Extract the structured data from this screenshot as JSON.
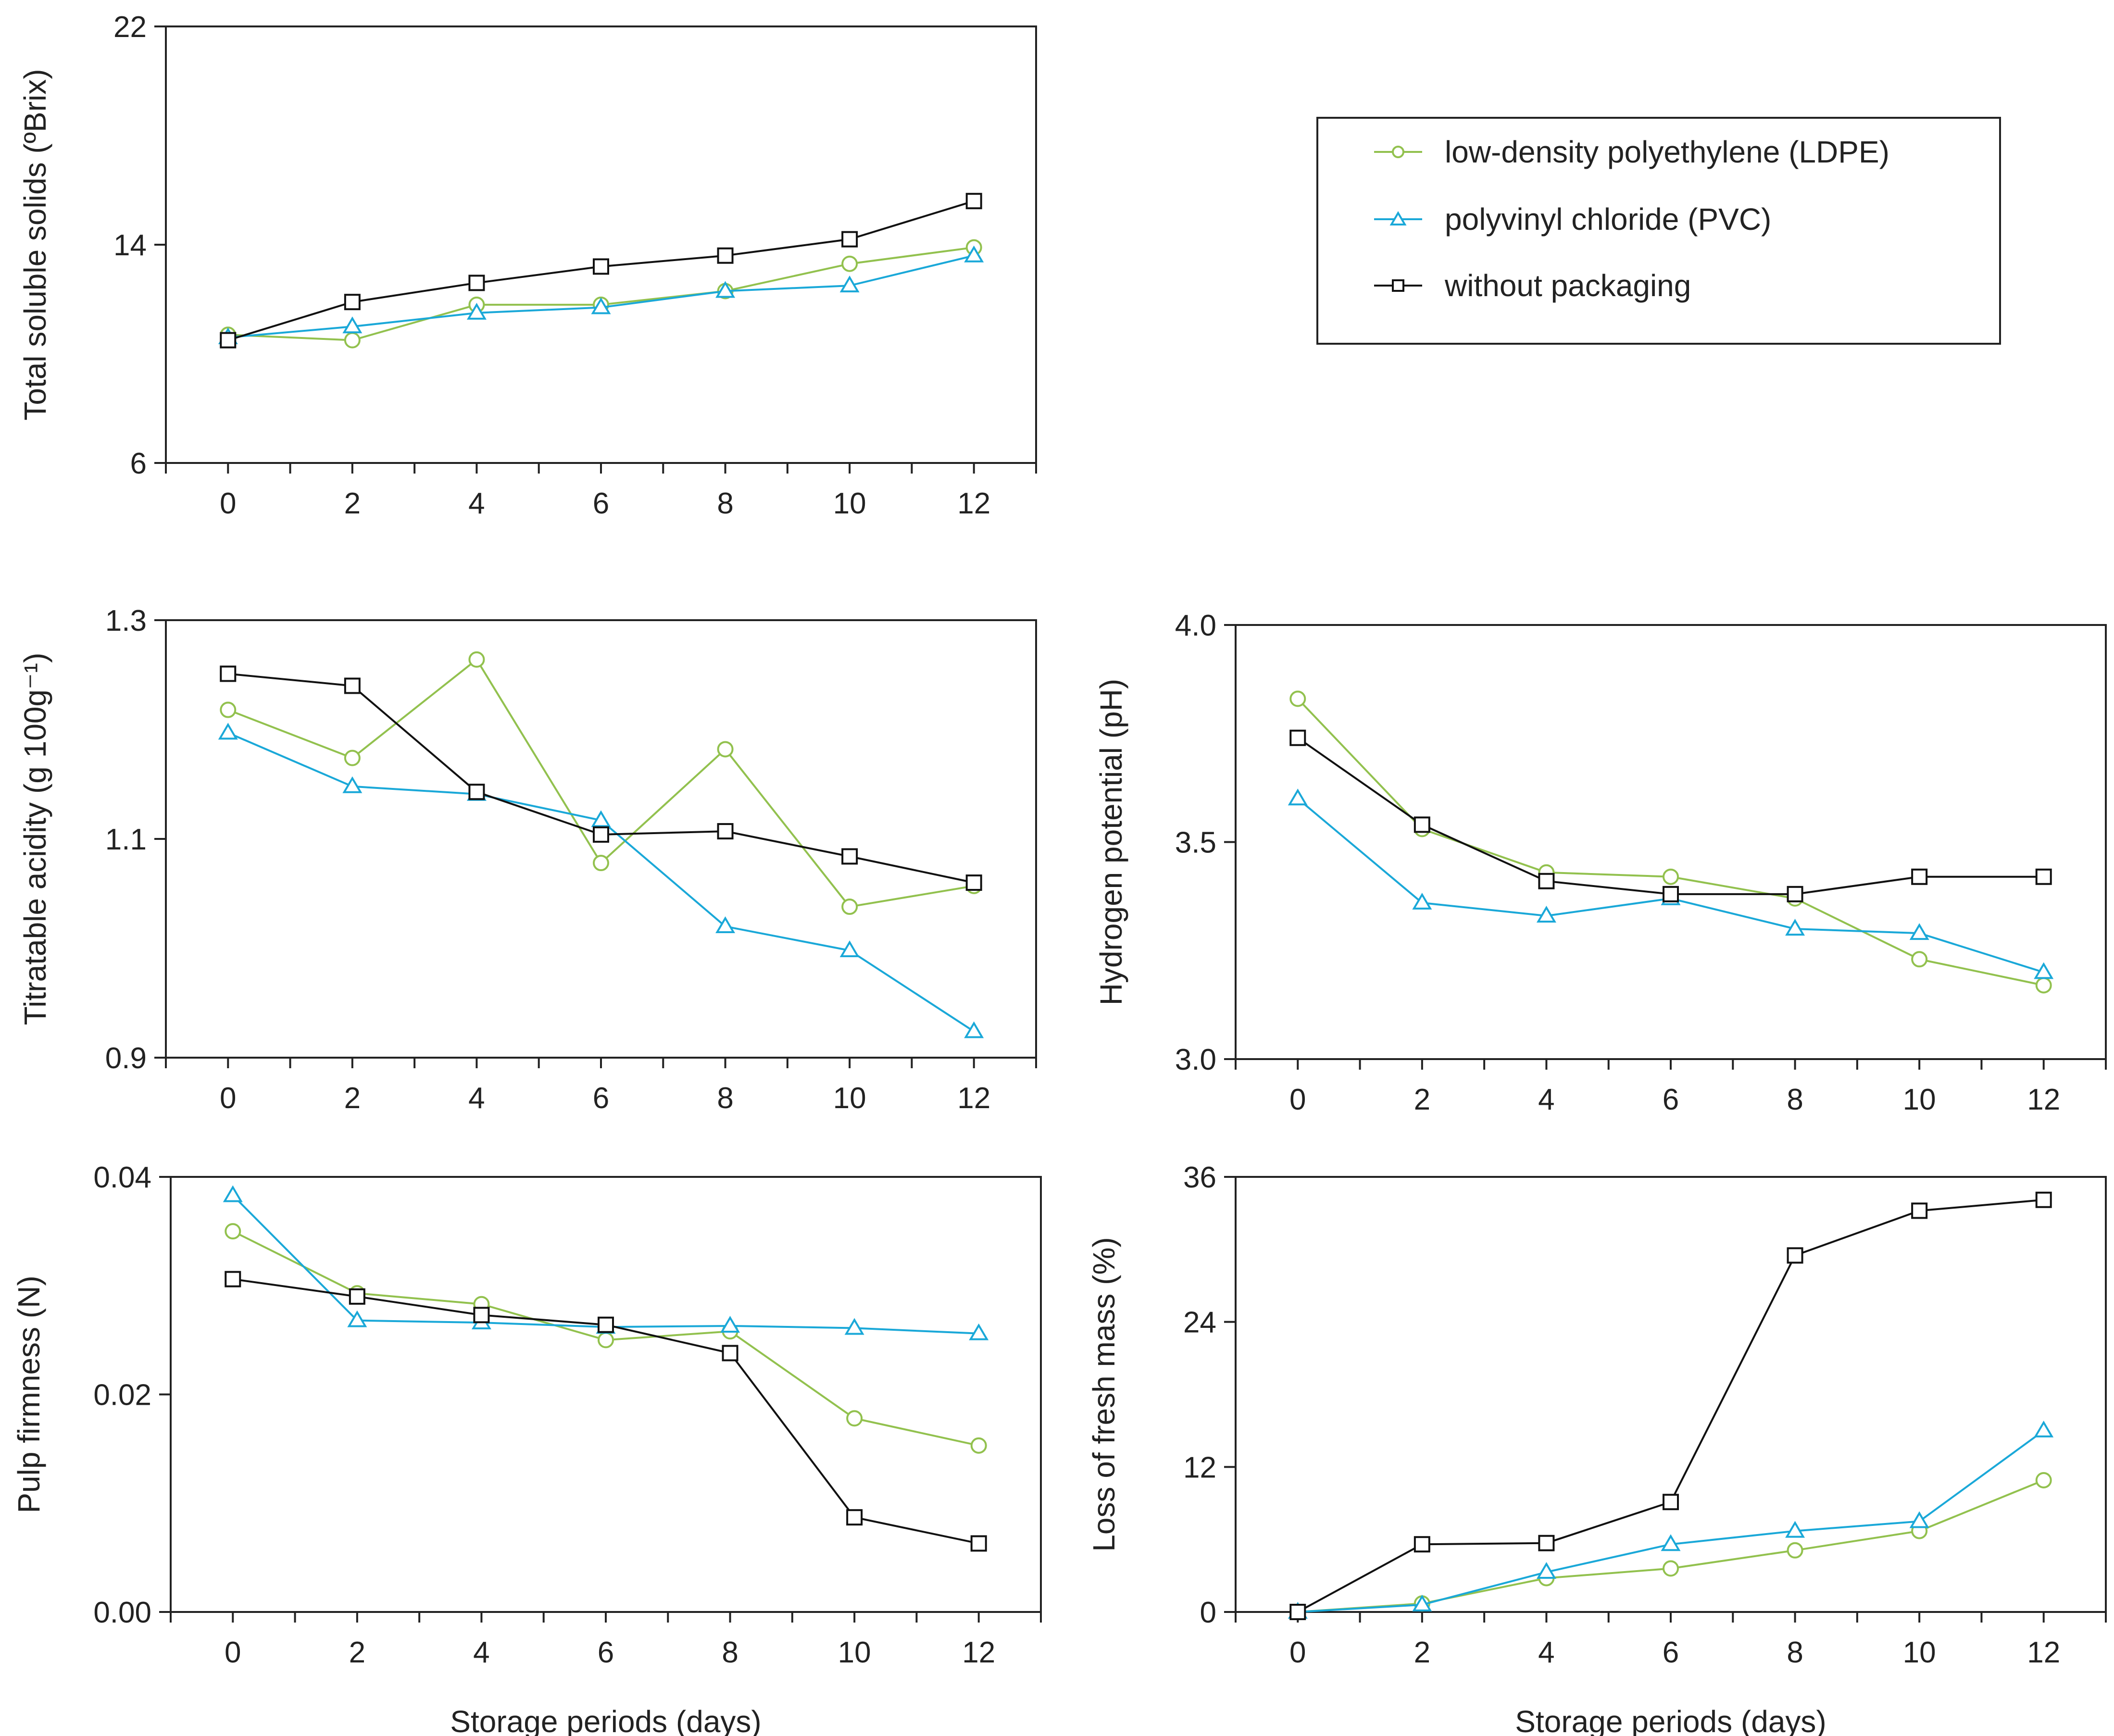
{
  "colors": {
    "ldpe": "#92c14e",
    "pvc": "#1aa8d8",
    "none": "#111111",
    "axis": "#222222"
  },
  "legend": {
    "items": [
      {
        "key": "ldpe",
        "label": "low-density polyethylene (LDPE)",
        "marker": "circle"
      },
      {
        "key": "pvc",
        "label": "polyvinyl chloride (PVC)",
        "marker": "triangle"
      },
      {
        "key": "none",
        "label": "without packaging",
        "marker": "square"
      }
    ]
  },
  "chart_data": [
    {
      "id": "tss",
      "type": "line",
      "ylabel": "Total soluble solids (ºBrix)",
      "xlabel": "",
      "x": [
        0,
        2,
        4,
        6,
        8,
        10,
        12
      ],
      "xlim": [
        -1,
        13
      ],
      "ylim": [
        6,
        22
      ],
      "yticks": [
        "6",
        "14",
        "22"
      ],
      "yticks_values": [
        6,
        14,
        22
      ],
      "xticks": [
        "0",
        "2",
        "4",
        "6",
        "8",
        "10",
        "12"
      ],
      "series": [
        {
          "key": "ldpe",
          "name": "low-density polyethylene (LDPE)",
          "values": [
            10.7,
            10.5,
            11.8,
            11.8,
            12.3,
            13.3,
            13.9
          ]
        },
        {
          "key": "pvc",
          "name": "polyvinyl chloride (PVC)",
          "values": [
            10.6,
            11.0,
            11.5,
            11.7,
            12.3,
            12.5,
            13.6
          ]
        },
        {
          "key": "none",
          "name": "without packaging",
          "values": [
            10.5,
            11.9,
            12.6,
            13.2,
            13.6,
            14.2,
            15.6
          ]
        }
      ]
    },
    {
      "id": "ta",
      "type": "line",
      "ylabel": "Titratable acidity (g 100g⁻¹)",
      "xlabel": "",
      "x": [
        0,
        2,
        4,
        6,
        8,
        10,
        12
      ],
      "xlim": [
        -1,
        13
      ],
      "ylim": [
        0.9,
        1.3
      ],
      "yticks": [
        "0.9",
        "1.1",
        "1.3"
      ],
      "yticks_values": [
        0.9,
        1.1,
        1.3
      ],
      "xticks": [
        "0",
        "2",
        "4",
        "6",
        "8",
        "10",
        "12"
      ],
      "series": [
        {
          "key": "ldpe",
          "name": "low-density polyethylene (LDPE)",
          "values": [
            1.218,
            1.174,
            1.264,
            1.078,
            1.182,
            1.038,
            1.057
          ]
        },
        {
          "key": "pvc",
          "name": "polyvinyl chloride (PVC)",
          "values": [
            1.197,
            1.148,
            1.141,
            1.117,
            1.02,
            0.998,
            0.924
          ]
        },
        {
          "key": "none",
          "name": "without packaging",
          "values": [
            1.251,
            1.24,
            1.143,
            1.104,
            1.107,
            1.084,
            1.06
          ]
        }
      ]
    },
    {
      "id": "ph",
      "type": "line",
      "ylabel": "Hydrogen potential (pH)",
      "xlabel": "",
      "x": [
        0,
        2,
        4,
        6,
        8,
        10,
        12
      ],
      "xlim": [
        -1,
        13
      ],
      "ylim": [
        3.0,
        4.0
      ],
      "yticks": [
        "3.0",
        "3.5",
        "4.0"
      ],
      "yticks_values": [
        3.0,
        3.5,
        4.0
      ],
      "xticks": [
        "0",
        "2",
        "4",
        "6",
        "8",
        "10",
        "12"
      ],
      "series": [
        {
          "key": "ldpe",
          "name": "low-density polyethylene (LDPE)",
          "values": [
            3.83,
            3.53,
            3.43,
            3.42,
            3.37,
            3.23,
            3.17
          ]
        },
        {
          "key": "pvc",
          "name": "polyvinyl chloride (PVC)",
          "values": [
            3.6,
            3.36,
            3.33,
            3.37,
            3.3,
            3.29,
            3.2
          ]
        },
        {
          "key": "none",
          "name": "without packaging",
          "values": [
            3.74,
            3.54,
            3.41,
            3.38,
            3.38,
            3.42,
            3.42
          ]
        }
      ]
    },
    {
      "id": "firmness",
      "type": "line",
      "ylabel": "Pulp firmness (N)",
      "xlabel": "Storage periods (days)",
      "x": [
        0,
        2,
        4,
        6,
        8,
        10,
        12
      ],
      "xlim": [
        -1,
        13
      ],
      "ylim": [
        0.0,
        0.04
      ],
      "yticks": [
        "0.00",
        "0.02",
        "0.04"
      ],
      "yticks_values": [
        0.0,
        0.02,
        0.04
      ],
      "xticks": [
        "0",
        "2",
        "4",
        "6",
        "8",
        "10",
        "12"
      ],
      "series": [
        {
          "key": "ldpe",
          "name": "low-density polyethylene (LDPE)",
          "values": [
            0.035,
            0.0293,
            0.0283,
            0.025,
            0.0258,
            0.0178,
            0.0153
          ]
        },
        {
          "key": "pvc",
          "name": "polyvinyl chloride (PVC)",
          "values": [
            0.0383,
            0.0268,
            0.0266,
            0.0262,
            0.0263,
            0.0261,
            0.0256
          ]
        },
        {
          "key": "none",
          "name": "without packaging",
          "values": [
            0.0306,
            0.029,
            0.0273,
            0.0264,
            0.0238,
            0.0087,
            0.0063
          ]
        }
      ]
    },
    {
      "id": "massloss",
      "type": "line",
      "ylabel": "Loss of fresh mass (%)",
      "xlabel": "Storage periods (days)",
      "x": [
        0,
        2,
        4,
        6,
        8,
        10,
        12
      ],
      "xlim": [
        -1,
        13
      ],
      "ylim": [
        0,
        36
      ],
      "yticks": [
        "0",
        "12",
        "24",
        "36"
      ],
      "yticks_values": [
        0,
        12,
        24,
        36
      ],
      "xticks": [
        "0",
        "2",
        "4",
        "6",
        "8",
        "10",
        "12"
      ],
      "series": [
        {
          "key": "ldpe",
          "name": "low-density polyethylene (LDPE)",
          "values": [
            0,
            0.7,
            2.8,
            3.6,
            5.1,
            6.7,
            10.9
          ]
        },
        {
          "key": "pvc",
          "name": "polyvinyl chloride (PVC)",
          "values": [
            0,
            0.6,
            3.3,
            5.6,
            6.7,
            7.5,
            15.0
          ]
        },
        {
          "key": "none",
          "name": "without packaging",
          "values": [
            0,
            5.6,
            5.7,
            9.1,
            29.5,
            33.2,
            34.1
          ]
        }
      ]
    }
  ]
}
